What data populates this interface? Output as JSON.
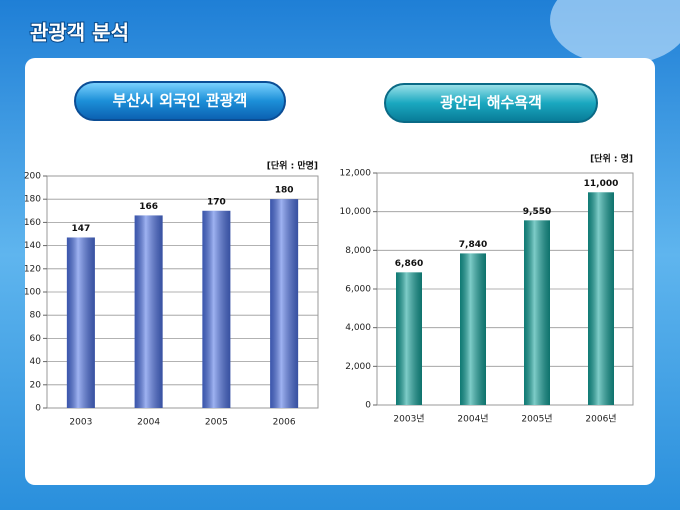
{
  "header": {
    "title": "관광객 분석"
  },
  "chart_data": [
    {
      "type": "bar",
      "title": "부산시 외국인 관광객",
      "unit_label": "[단위 : 만명]",
      "categories": [
        "2003",
        "2004",
        "2005",
        "2006"
      ],
      "values": [
        147,
        166,
        170,
        180
      ],
      "color": "#4f73e6",
      "ylim": [
        0,
        200
      ],
      "yticks": [
        0,
        20,
        40,
        60,
        80,
        100,
        120,
        140,
        160,
        180,
        200
      ],
      "grid": true
    },
    {
      "type": "bar",
      "title": "광안리 해수욕객",
      "unit_label": "[단위 : 명]",
      "categories": [
        "2003년",
        "2004년",
        "2005년",
        "2006년"
      ],
      "values": [
        6860,
        7840,
        9550,
        11000
      ],
      "value_labels": [
        "6,860",
        "7,840",
        "9,550",
        "11,000"
      ],
      "color": "#14a39b",
      "ylim": [
        0,
        12000
      ],
      "yticks": [
        0,
        {
          "value": 2000,
          "label": "2,000"
        },
        {
          "value": 4000,
          "label": "4,000"
        },
        {
          "value": 6000,
          "label": "6,000"
        },
        {
          "value": 8000,
          "label": "8,000"
        },
        {
          "value": 10000,
          "label": "10,000"
        },
        {
          "value": 12000,
          "label": "12,000"
        }
      ],
      "grid": true
    }
  ]
}
